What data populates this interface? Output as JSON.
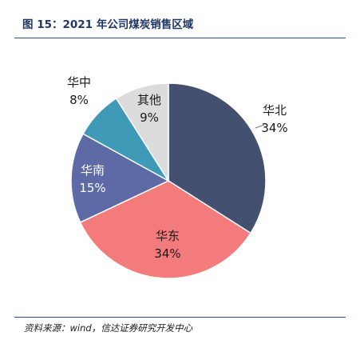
{
  "header": {
    "title": "图 15：2021 年公司煤炭销售区域"
  },
  "footer": {
    "source": "资料来源：wind，信达证券研究开发中心"
  },
  "chart_data": {
    "type": "pie",
    "title": "",
    "start": "12 o'clock",
    "direction": "clockwise",
    "slices": [
      {
        "name": "华北",
        "value": 34,
        "label": "34%",
        "color": "#44506f"
      },
      {
        "name": "华东",
        "value": 34,
        "label": "34%",
        "color": "#f47b7b"
      },
      {
        "name": "华南",
        "value": 15,
        "label": "15%",
        "color": "#5d6aa6"
      },
      {
        "name": "华中",
        "value": 8,
        "label": "8%",
        "color": "#3f9ab8"
      },
      {
        "name": "其他",
        "value": 9,
        "label": "9%",
        "color": "#dcdcdc"
      }
    ]
  }
}
